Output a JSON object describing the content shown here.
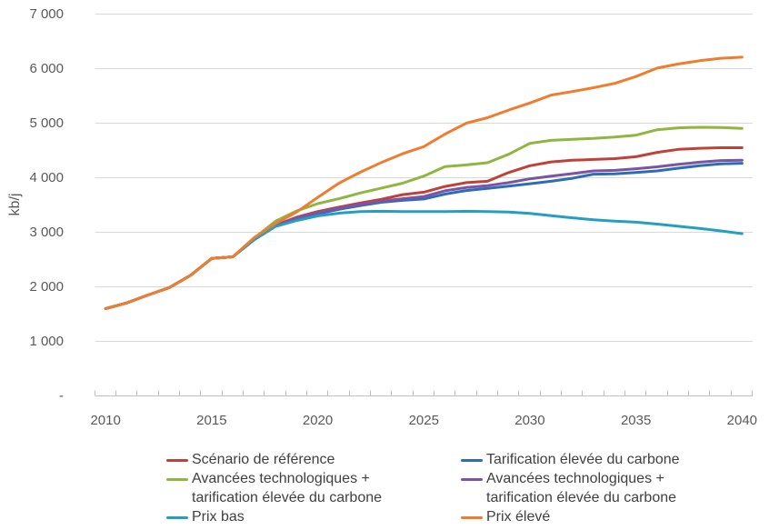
{
  "chart_data": {
    "type": "line",
    "title": "",
    "xlabel": "",
    "ylabel": "kb/j",
    "grid": true,
    "ylim": [
      0,
      7000
    ],
    "x": [
      2010,
      2011,
      2012,
      2013,
      2014,
      2015,
      2016,
      2017,
      2018,
      2019,
      2020,
      2021,
      2022,
      2023,
      2024,
      2025,
      2026,
      2027,
      2028,
      2029,
      2030,
      2031,
      2032,
      2033,
      2034,
      2035,
      2036,
      2037,
      2038,
      2039,
      2040
    ],
    "y_ticks": [
      {
        "value": 7000,
        "label": "7 000"
      },
      {
        "value": 6000,
        "label": "6 000"
      },
      {
        "value": 5000,
        "label": "5 000"
      },
      {
        "value": 4000,
        "label": "4 000"
      },
      {
        "value": 3000,
        "label": "3 000"
      },
      {
        "value": 2000,
        "label": "2 000"
      },
      {
        "value": 1000,
        "label": "1 000"
      },
      {
        "value": 0,
        "label": "-"
      }
    ],
    "x_ticks": [
      {
        "value": 2010,
        "label": "2010"
      },
      {
        "value": 2015,
        "label": "2015"
      },
      {
        "value": 2020,
        "label": "2020"
      },
      {
        "value": 2025,
        "label": "2025"
      },
      {
        "value": 2030,
        "label": "2030"
      },
      {
        "value": 2035,
        "label": "2035"
      },
      {
        "value": 2040,
        "label": "2040"
      }
    ],
    "series": [
      {
        "name": "Scénario de référence",
        "color": "#BF4138",
        "values": [
          1600,
          1705,
          1850,
          1985,
          2210,
          2520,
          2550,
          2880,
          3130,
          3275,
          3380,
          3460,
          3535,
          3605,
          3690,
          3735,
          3840,
          3910,
          3935,
          4095,
          4220,
          4290,
          4320,
          4335,
          4350,
          4385,
          4465,
          4520,
          4540,
          4550,
          4550
        ]
      },
      {
        "name": "Tarification élevée du carbone",
        "color": "#2E6DB5",
        "values": [
          1600,
          1705,
          1850,
          1985,
          2210,
          2520,
          2550,
          2865,
          3110,
          3250,
          3340,
          3420,
          3490,
          3550,
          3585,
          3610,
          3700,
          3765,
          3805,
          3845,
          3890,
          3935,
          3990,
          4065,
          4070,
          4095,
          4125,
          4175,
          4220,
          4255,
          4265
        ]
      },
      {
        "name": "Avancées technologiques + tarification élevée du carbone",
        "color": "#8FB640",
        "values": [
          1600,
          1705,
          1850,
          1985,
          2210,
          2520,
          2550,
          2890,
          3200,
          3390,
          3525,
          3615,
          3720,
          3810,
          3900,
          4030,
          4205,
          4235,
          4275,
          4430,
          4630,
          4685,
          4705,
          4720,
          4745,
          4780,
          4880,
          4915,
          4925,
          4920,
          4905
        ]
      },
      {
        "name": "Avancées technologiques + tarification élevée du carbone",
        "color": "#7A55A4",
        "values": [
          1600,
          1705,
          1850,
          1985,
          2210,
          2520,
          2550,
          2870,
          3120,
          3265,
          3360,
          3440,
          3510,
          3570,
          3615,
          3655,
          3760,
          3820,
          3855,
          3910,
          3980,
          4030,
          4075,
          4125,
          4135,
          4165,
          4200,
          4245,
          4285,
          4315,
          4320
        ]
      },
      {
        "name": "Prix bas",
        "color": "#259FC1",
        "values": [
          1600,
          1705,
          1850,
          1985,
          2210,
          2520,
          2550,
          2860,
          3105,
          3215,
          3300,
          3350,
          3380,
          3385,
          3380,
          3380,
          3380,
          3385,
          3380,
          3370,
          3345,
          3305,
          3265,
          3230,
          3205,
          3185,
          3150,
          3110,
          3070,
          3025,
          2975
        ]
      },
      {
        "name": "Prix élevé",
        "color": "#EF7D30",
        "values": [
          1600,
          1705,
          1850,
          1985,
          2210,
          2520,
          2550,
          2900,
          3160,
          3370,
          3640,
          3900,
          4100,
          4280,
          4440,
          4570,
          4800,
          5000,
          5100,
          5240,
          5370,
          5515,
          5580,
          5650,
          5730,
          5855,
          6010,
          6085,
          6145,
          6190,
          6210
        ]
      }
    ],
    "legend": {
      "position": "bottom",
      "columns": 2,
      "items": [
        {
          "label": "Scénario de référence",
          "series": 0
        },
        {
          "label": "Tarification élevée du carbone",
          "series": 1
        },
        {
          "label": "Avancées technologiques +\ntarification élevée du carbone",
          "series": 2
        },
        {
          "label": "Avancées technologiques +\ntarification élevée du carbone",
          "series": 3
        },
        {
          "label": "Prix bas",
          "series": 4
        },
        {
          "label": "Prix élevé",
          "series": 5
        }
      ]
    }
  }
}
